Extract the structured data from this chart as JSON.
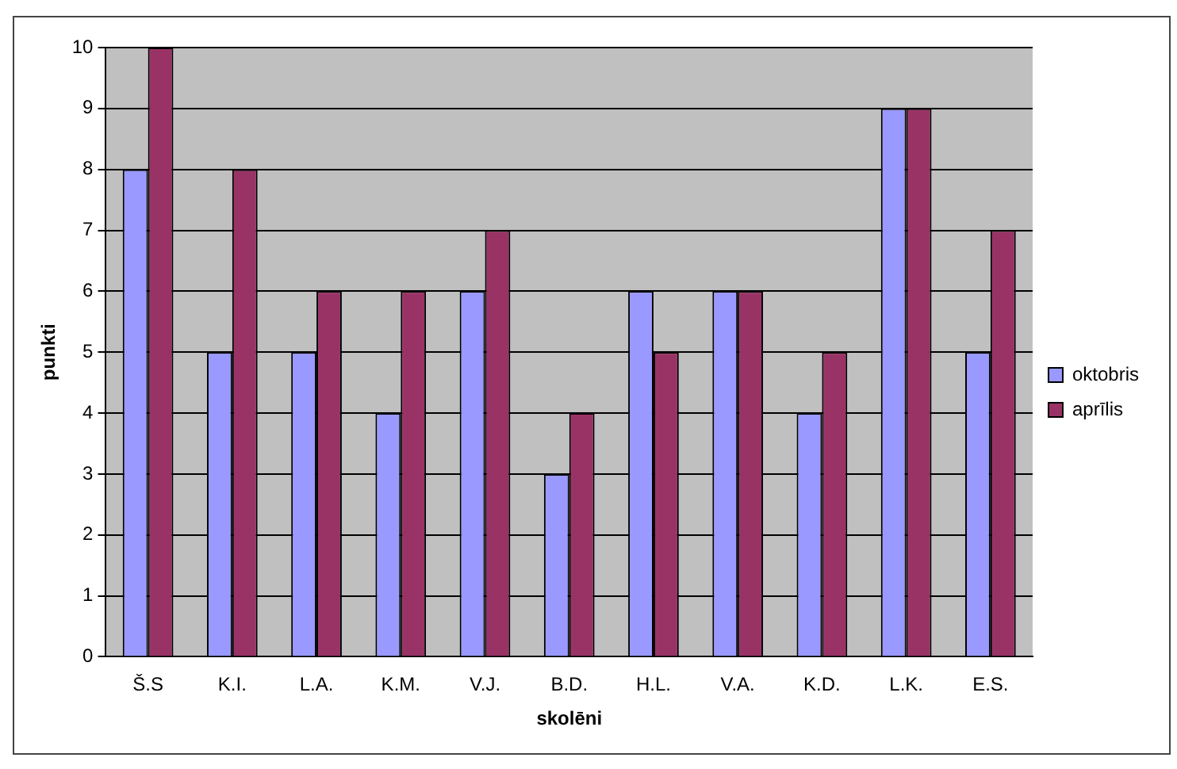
{
  "chart_data": {
    "type": "bar",
    "xlabel": "skolēni",
    "ylabel": "punkti",
    "categories": [
      "Š.S",
      "K.I.",
      "L.A.",
      "K.M.",
      "V.J.",
      "B.D.",
      "H.L.",
      "V.A.",
      "K.D.",
      "L.K.",
      "E.S."
    ],
    "series": [
      {
        "name": "oktobris",
        "color": "#9999ff",
        "values": [
          8,
          5,
          5,
          4,
          6,
          3,
          6,
          6,
          4,
          9,
          5
        ]
      },
      {
        "name": "aprīlis",
        "color": "#993366",
        "values": [
          10,
          8,
          6,
          6,
          7,
          4,
          5,
          6,
          5,
          9,
          7
        ]
      }
    ],
    "ylim": [
      0,
      10
    ],
    "yticks": [
      0,
      1,
      2,
      3,
      4,
      5,
      6,
      7,
      8,
      9,
      10
    ],
    "grid": "y",
    "legend": "right"
  }
}
